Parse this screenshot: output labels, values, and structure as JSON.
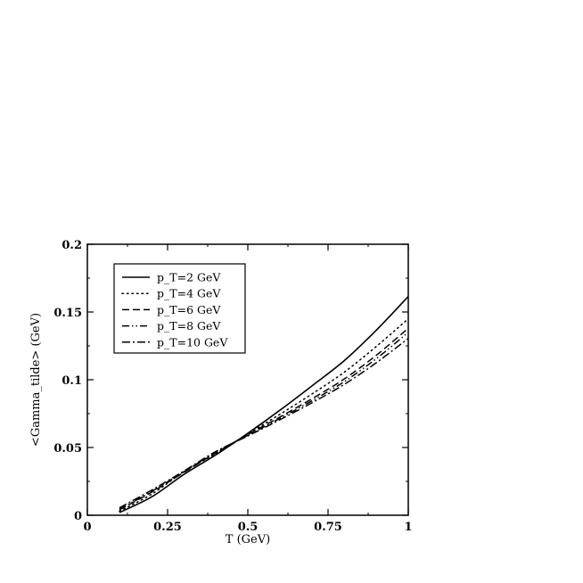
{
  "chart_data": {
    "type": "line",
    "title": "",
    "xlabel": "T (GeV)",
    "ylabel": "<Gamma_tilde> (GeV)",
    "xlim": [
      0,
      1
    ],
    "ylim": [
      0,
      0.2
    ],
    "x_ticks": [
      0,
      0.25,
      0.5,
      0.75,
      1
    ],
    "x_tick_labels": [
      "0",
      "0.25",
      "0.5",
      "0.75",
      "1"
    ],
    "y_ticks": [
      0,
      0.05,
      0.1,
      0.15,
      0.2
    ],
    "y_tick_labels": [
      "0",
      "0.05",
      "0.1",
      "0.15",
      "0.2"
    ],
    "grid": false,
    "legend_position": "top-left",
    "series": [
      {
        "name": "p_T=2 GeV",
        "style": "solid",
        "x": [
          0.1,
          0.2,
          0.3,
          0.4,
          0.5,
          0.6,
          0.7,
          0.8,
          0.9,
          1.0
        ],
        "values": [
          0.002,
          0.0135,
          0.03,
          0.0445,
          0.0605,
          0.0775,
          0.0955,
          0.114,
          0.1365,
          0.1615
        ]
      },
      {
        "name": "p_T=4 GeV",
        "style": "dotted",
        "x": [
          0.1,
          0.2,
          0.3,
          0.4,
          0.5,
          0.6,
          0.7,
          0.8,
          0.9,
          1.0
        ],
        "values": [
          0.003,
          0.0155,
          0.032,
          0.0455,
          0.06,
          0.0745,
          0.0895,
          0.1055,
          0.1245,
          0.145
        ]
      },
      {
        "name": "p_T=6 GeV",
        "style": "dashed",
        "x": [
          0.1,
          0.2,
          0.3,
          0.4,
          0.5,
          0.6,
          0.7,
          0.8,
          0.9,
          1.0
        ],
        "values": [
          0.004,
          0.017,
          0.0315,
          0.046,
          0.0595,
          0.0725,
          0.086,
          0.1005,
          0.118,
          0.138
        ]
      },
      {
        "name": "p_T=8 GeV",
        "style": "dash-dot-dot",
        "x": [
          0.1,
          0.2,
          0.3,
          0.4,
          0.5,
          0.6,
          0.7,
          0.8,
          0.9,
          1.0
        ],
        "values": [
          0.0045,
          0.0175,
          0.032,
          0.0465,
          0.059,
          0.0715,
          0.0845,
          0.0985,
          0.1155,
          0.135
        ]
      },
      {
        "name": "p_T=10 GeV",
        "style": "dash-dot",
        "x": [
          0.1,
          0.2,
          0.3,
          0.4,
          0.5,
          0.6,
          0.7,
          0.8,
          0.9,
          1.0
        ],
        "values": [
          0.0055,
          0.0185,
          0.0325,
          0.047,
          0.0585,
          0.0705,
          0.083,
          0.0965,
          0.1125,
          0.1305
        ]
      }
    ]
  }
}
